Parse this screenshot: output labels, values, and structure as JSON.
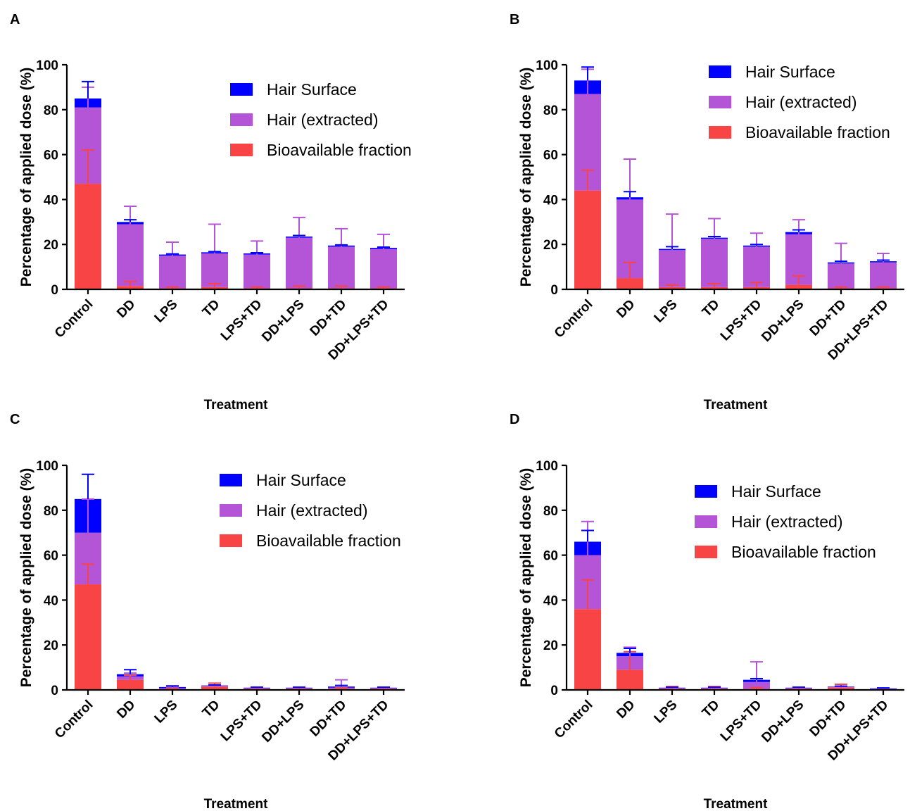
{
  "colors": {
    "hair_surface": "#0000ff",
    "hair_extracted": "#b455d8",
    "bioavailable": "#f84444",
    "axis": "#000000"
  },
  "common": {
    "categories": [
      "Control",
      "DD",
      "LPS",
      "TD",
      "LPS+TD",
      "DD+LPS",
      "DD+TD",
      "DD+LPS+TD"
    ],
    "xlabel": "Treatment",
    "ylabel": "Percentage of applied dose (%)",
    "yticks": [
      0,
      20,
      40,
      60,
      80,
      100
    ],
    "legend": [
      "Hair Surface",
      "Hair (extracted)",
      "Bioavailable fraction"
    ]
  },
  "chart_data": [
    {
      "panel": "A",
      "type": "bar",
      "stacked": true,
      "categories": [
        "Control",
        "DD",
        "LPS",
        "TD",
        "LPS+TD",
        "DD+LPS",
        "DD+TD",
        "DD+LPS+TD"
      ],
      "xlabel": "Treatment",
      "ylabel": "Percentage of applied dose (%)",
      "ylim": [
        0,
        100
      ],
      "legend_position": "top-right",
      "series": [
        {
          "name": "Bioavailable fraction",
          "values": [
            47,
            1.5,
            0.5,
            1,
            0.5,
            0.5,
            0.5,
            0.5
          ],
          "error": [
            15,
            2,
            0.5,
            1.5,
            0.5,
            1,
            1,
            0.5
          ]
        },
        {
          "name": "Hair (extracted)",
          "values": [
            34,
            27.5,
            14.5,
            15,
            15,
            22.5,
            18.5,
            17.5
          ],
          "error": [
            9,
            8,
            6,
            13,
            6,
            9,
            8,
            6.5
          ]
        },
        {
          "name": "Hair Surface",
          "values": [
            4,
            1,
            0.5,
            0.5,
            0.5,
            0.5,
            0.5,
            0.5
          ],
          "error": [
            7.5,
            1,
            0.3,
            0.3,
            0.3,
            0.5,
            0.3,
            0.3
          ]
        }
      ]
    },
    {
      "panel": "B",
      "type": "bar",
      "stacked": true,
      "categories": [
        "Control",
        "DD",
        "LPS",
        "TD",
        "LPS+TD",
        "DD+LPS",
        "DD+TD",
        "DD+LPS+TD"
      ],
      "xlabel": "Treatment",
      "ylabel": "Percentage of applied dose (%)",
      "ylim": [
        0,
        100
      ],
      "legend_position": "top-right",
      "series": [
        {
          "name": "Bioavailable fraction",
          "values": [
            44,
            5,
            1,
            1,
            1,
            2,
            0.5,
            0.5
          ],
          "error": [
            9,
            7,
            1,
            1.5,
            2,
            4,
            0.5,
            0.5
          ]
        },
        {
          "name": "Hair (extracted)",
          "values": [
            43,
            35,
            16.5,
            21.5,
            18,
            22.5,
            11,
            11.5
          ],
          "error": [
            11,
            18,
            16,
            9,
            6,
            6.5,
            9,
            4
          ]
        },
        {
          "name": "Hair Surface",
          "values": [
            6,
            1,
            0.5,
            0.5,
            0.5,
            1,
            0.5,
            0.5
          ],
          "error": [
            6,
            2.5,
            1,
            0.5,
            0.5,
            1,
            0.5,
            0.5
          ]
        }
      ]
    },
    {
      "panel": "C",
      "type": "bar",
      "stacked": true,
      "categories": [
        "Control",
        "DD",
        "LPS",
        "TD",
        "LPS+TD",
        "DD+LPS",
        "DD+TD",
        "DD+LPS+TD"
      ],
      "xlabel": "Treatment",
      "ylabel": "Percentage of applied dose (%)",
      "ylim": [
        0,
        100
      ],
      "legend_position": "top-right",
      "series": [
        {
          "name": "Bioavailable fraction",
          "values": [
            47,
            4.5,
            0.3,
            1.5,
            0.5,
            0.5,
            0.5,
            0.5
          ],
          "error": [
            9,
            2,
            0.3,
            1.5,
            0.5,
            0.5,
            0.5,
            0.5
          ]
        },
        {
          "name": "Hair (extracted)",
          "values": [
            23,
            1.5,
            0.5,
            0.3,
            0.3,
            0.3,
            0.5,
            0.3
          ],
          "error": [
            15,
            1.5,
            0.5,
            0.3,
            0.3,
            0.3,
            3.5,
            0.3
          ]
        },
        {
          "name": "Hair Surface",
          "values": [
            15,
            1,
            0.5,
            0.2,
            0.2,
            0.2,
            0.5,
            0.2
          ],
          "error": [
            11,
            2,
            0.5,
            0.2,
            0.2,
            0.2,
            0.5,
            0.2
          ]
        }
      ]
    },
    {
      "panel": "D",
      "type": "bar",
      "stacked": true,
      "categories": [
        "Control",
        "DD",
        "LPS",
        "TD",
        "LPS+TD",
        "DD+LPS",
        "DD+TD",
        "DD+LPS+TD"
      ],
      "xlabel": "Treatment",
      "ylabel": "Percentage of applied dose (%)",
      "ylim": [
        0,
        100
      ],
      "legend_position": "top-right",
      "series": [
        {
          "name": "Bioavailable fraction",
          "values": [
            36,
            9,
            0.5,
            0.5,
            0.5,
            0.5,
            1,
            0.3
          ],
          "error": [
            13,
            8,
            1,
            1,
            0.5,
            0.5,
            1.5,
            0.3
          ]
        },
        {
          "name": "Hair (extracted)",
          "values": [
            24,
            6,
            0.3,
            0.3,
            3,
            0.3,
            0.3,
            0.2
          ],
          "error": [
            15,
            4,
            0.3,
            0.3,
            9,
            0.3,
            0.3,
            0.2
          ]
        },
        {
          "name": "Hair Surface",
          "values": [
            6,
            1.5,
            0.2,
            0.2,
            1,
            0.2,
            0.2,
            0.2
          ],
          "error": [
            5,
            2,
            0.2,
            0.2,
            0.5,
            0.2,
            0.2,
            0.2
          ]
        }
      ]
    }
  ]
}
